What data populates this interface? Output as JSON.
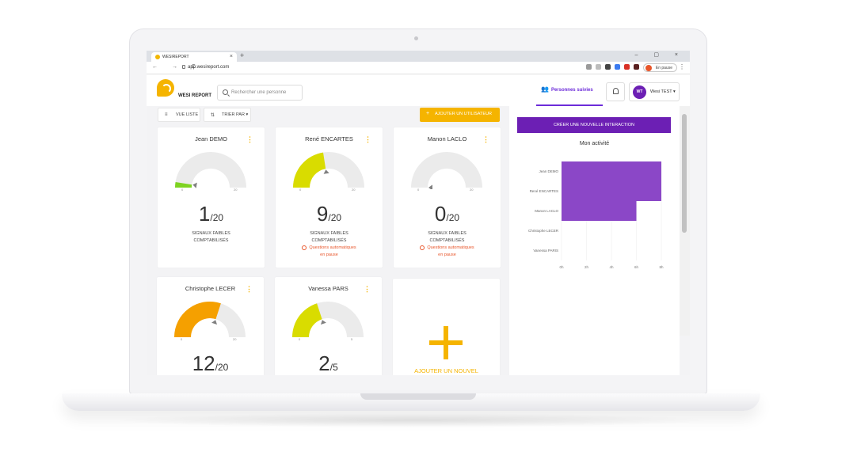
{
  "browser": {
    "tab_title": "WESIREPORT",
    "tab_close": "×",
    "new_tab": "+",
    "window_controls": "– ▢ ×",
    "nav_glyphs": "← → C",
    "url": "app.wesireport.com",
    "pause_label": "En pause",
    "menu_glyph": "⋮"
  },
  "header": {
    "logo_text": "WESI REPORT",
    "search_placeholder": "Rechercher une personne",
    "follow_tab_label": "Personnes suivies",
    "user_initials": "WT",
    "user_name": "Wesi TEST ▾"
  },
  "toolbar": {
    "list_view_label": "VUE LISTE",
    "sort_label": "TRIER PAR ▾",
    "add_user_label": "AJOUTER UN UTILISATEUR"
  },
  "cards": [
    {
      "name": "Jean DEMO",
      "value": 1,
      "max": 20,
      "min_label": "0",
      "max_label": "20",
      "signal_line1": "SIGNAUX FAIBLES",
      "signal_line2": "COMPTABILISÉS",
      "paused_line1": "",
      "paused_line2": "",
      "color": "#7ed321",
      "needle": "#808080"
    },
    {
      "name": "René ENCARTES",
      "value": 9,
      "max": 20,
      "min_label": "0",
      "max_label": "20",
      "signal_line1": "SIGNAUX FAIBLES",
      "signal_line2": "COMPTABILISÉS",
      "paused_line1": "Questions automatiques",
      "paused_line2": "en pause",
      "color": "#d9dc00",
      "needle": "#808080"
    },
    {
      "name": "Manon LACLO",
      "value": 0,
      "max": 20,
      "min_label": "0",
      "max_label": "20",
      "signal_line1": "SIGNAUX FAIBLES",
      "signal_line2": "COMPTABILISÉS",
      "paused_line1": "Questions automatiques",
      "paused_line2": "en pause",
      "color": "#d9dc00",
      "needle": "#808080"
    },
    {
      "name": "Christophe LECER",
      "value": 12,
      "max": 20,
      "min_label": "0",
      "max_label": "20",
      "signal_line1": "",
      "signal_line2": "",
      "paused_line1": "",
      "paused_line2": "",
      "color": "#f5a000",
      "needle": "#808080"
    },
    {
      "name": "Vanessa PARS",
      "value": 2,
      "max": 5,
      "min_label": "0",
      "max_label": "5",
      "signal_line1": "",
      "signal_line2": "",
      "paused_line1": "",
      "paused_line2": "",
      "color": "#d9dc00",
      "needle": "#808080"
    }
  ],
  "card_labels": {
    "kebab": "⋮",
    "separator": "/"
  },
  "add_card": {
    "label": "AJOUTER UN NOUVEL"
  },
  "right_panel": {
    "create_button": "CRÉER UNE NOUVELLE INTERACTION",
    "activity_title": "Mon activité"
  },
  "chart_data": {
    "type": "bar",
    "orientation": "horizontal",
    "title": "Mon activité",
    "categories": [
      "Jean DEMO",
      "René ENCARTES",
      "Manon LACLO",
      "Christophe LECER",
      "Vanessa PARIS"
    ],
    "values": [
      8,
      8,
      6,
      0,
      0
    ],
    "x_ticks": [
      "0h",
      "2h",
      "4h",
      "6h",
      "8h"
    ],
    "xlim": [
      0,
      8
    ],
    "bar_color": "#8b47c7",
    "grid": true
  },
  "colors": {
    "accent": "#f5b400",
    "brand_purple": "#6c1fb4",
    "warning": "#e8552a",
    "gauge_track": "#ebebeb"
  }
}
